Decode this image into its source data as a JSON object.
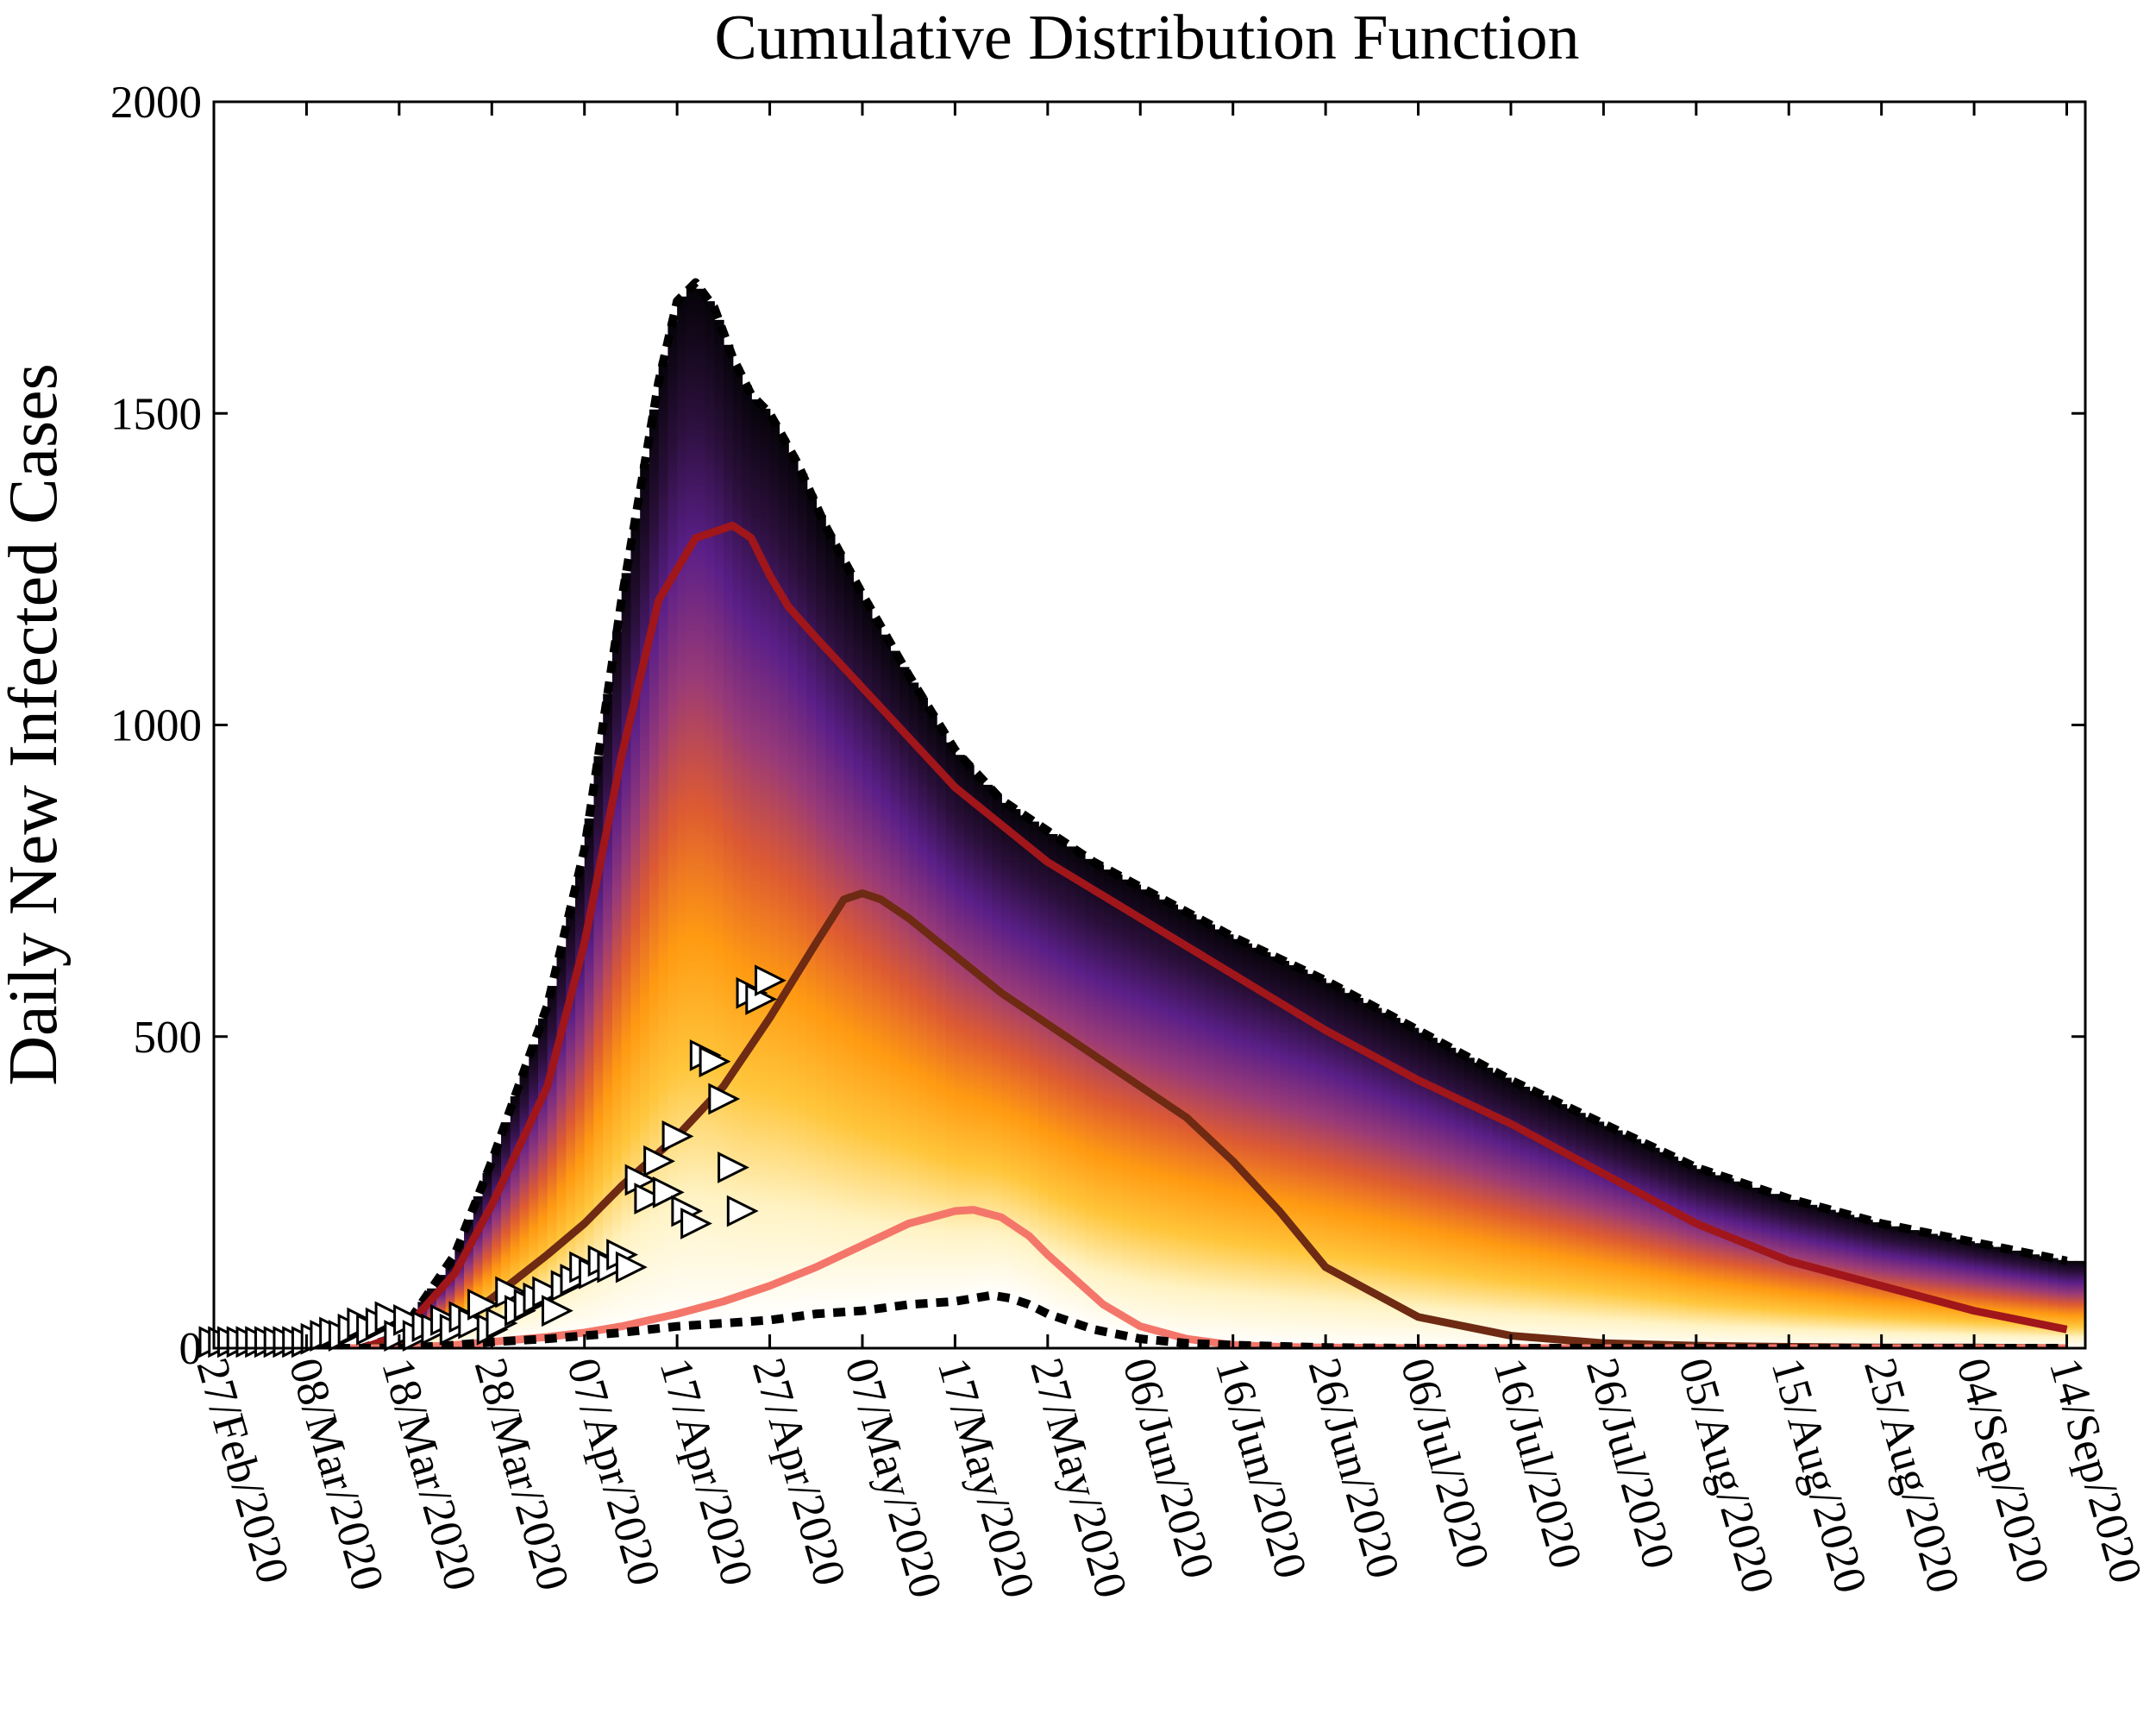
{
  "chart_data": {
    "type": "area",
    "title": "Cumulative Distribution Function",
    "xlabel": "",
    "ylabel": "Daily New Infected Cases",
    "ylim": [
      0,
      2000
    ],
    "xlim_days": [
      0,
      202
    ],
    "yticks": [
      0,
      500,
      1000,
      1500,
      2000
    ],
    "xtick_labels": [
      "27/Feb/2020",
      "08/Mar/2020",
      "18/Mar/2020",
      "28/Mar/2020",
      "07/Apr/2020",
      "17/Apr/2020",
      "27/Apr/2020",
      "07/May/2020",
      "17/May/2020",
      "27/May/2020",
      "06/Jun/2020",
      "16/Jun/2020",
      "26/Jun/2020",
      "06/Jul/2020",
      "16/Jul/2020",
      "26/Jul/2020",
      "05/Aug/2020",
      "15/Aug/2020",
      "25/Aug/2020",
      "04/Sep/2020",
      "14/Sep/2020"
    ],
    "xtick_days": [
      0,
      10,
      20,
      30,
      40,
      50,
      60,
      70,
      80,
      90,
      100,
      110,
      120,
      130,
      140,
      150,
      160,
      170,
      180,
      190,
      200
    ],
    "gradient_colors": [
      "#ffffff",
      "#fff3c4",
      "#ffc63c",
      "#ff9a12",
      "#dd5a32",
      "#993a78",
      "#5a1f88",
      "#2a0f3a",
      "#050308"
    ],
    "series": [
      {
        "name": "upper-bound",
        "style": "dashed",
        "color": "#000000",
        "x": [
          0,
          10,
          16,
          20,
          26,
          30,
          36,
          40,
          44,
          48,
          50,
          52,
          54,
          56,
          58,
          60,
          63,
          66,
          70,
          75,
          80,
          85,
          90,
          95,
          100,
          110,
          120,
          130,
          140,
          150,
          160,
          170,
          180,
          190,
          200
        ],
        "y": [
          0,
          0,
          0,
          20,
          150,
          300,
          550,
          800,
          1200,
          1550,
          1680,
          1710,
          1670,
          1590,
          1530,
          1500,
          1420,
          1320,
          1210,
          1080,
          960,
          880,
          830,
          780,
          740,
          660,
          590,
          510,
          430,
          360,
          290,
          240,
          200,
          170,
          140
        ]
      },
      {
        "name": "upper-quantile",
        "style": "solid",
        "color": "#a0161a",
        "x": [
          0,
          10,
          16,
          20,
          26,
          30,
          36,
          40,
          44,
          48,
          52,
          56,
          58,
          60,
          62,
          65,
          70,
          80,
          90,
          100,
          110,
          120,
          130,
          140,
          150,
          160,
          170,
          180,
          190,
          200
        ],
        "y": [
          0,
          0,
          0,
          20,
          120,
          230,
          420,
          650,
          950,
          1200,
          1300,
          1320,
          1300,
          1240,
          1190,
          1140,
          1060,
          900,
          780,
          690,
          600,
          510,
          430,
          360,
          280,
          200,
          140,
          100,
          60,
          30
        ]
      },
      {
        "name": "median",
        "style": "solid",
        "color": "#6e2a12",
        "x": [
          0,
          10,
          16,
          20,
          26,
          30,
          36,
          40,
          44,
          50,
          55,
          60,
          65,
          68,
          70,
          72,
          75,
          80,
          85,
          90,
          95,
          100,
          105,
          110,
          115,
          120,
          130,
          140,
          150,
          160,
          170,
          180,
          190,
          200
        ],
        "y": [
          0,
          0,
          0,
          5,
          40,
          80,
          150,
          200,
          260,
          340,
          420,
          530,
          650,
          720,
          730,
          720,
          690,
          630,
          570,
          520,
          470,
          420,
          370,
          300,
          220,
          130,
          50,
          20,
          8,
          4,
          2,
          1,
          1,
          0
        ]
      },
      {
        "name": "lower-quantile",
        "style": "solid",
        "color": "#f4766a",
        "x": [
          0,
          10,
          16,
          20,
          26,
          30,
          36,
          40,
          44,
          50,
          55,
          60,
          65,
          70,
          75,
          80,
          82,
          85,
          88,
          90,
          93,
          96,
          100,
          105,
          110,
          115,
          120,
          130,
          140,
          150,
          160,
          170,
          180,
          190,
          200
        ],
        "y": [
          0,
          0,
          0,
          0,
          5,
          10,
          18,
          25,
          35,
          55,
          75,
          100,
          130,
          165,
          200,
          220,
          222,
          210,
          180,
          150,
          110,
          70,
          35,
          15,
          5,
          2,
          1,
          0,
          0,
          0,
          0,
          0,
          0,
          0,
          0
        ]
      },
      {
        "name": "lower-bound",
        "style": "dashed",
        "color": "#000000",
        "x": [
          0,
          10,
          16,
          20,
          26,
          30,
          36,
          40,
          44,
          50,
          55,
          60,
          65,
          70,
          75,
          80,
          84,
          86,
          88,
          90,
          95,
          100,
          105,
          110,
          115,
          120,
          130,
          140,
          150,
          160,
          170,
          180,
          190,
          200
        ],
        "y": [
          0,
          0,
          0,
          0,
          5,
          10,
          15,
          20,
          25,
          35,
          40,
          45,
          55,
          60,
          70,
          75,
          85,
          80,
          70,
          55,
          30,
          15,
          8,
          5,
          3,
          1,
          0,
          0,
          0,
          0,
          0,
          0,
          0,
          0
        ]
      }
    ],
    "observed": {
      "name": "observed",
      "marker": "triangle-right",
      "x": [
        0,
        1,
        2,
        3,
        4,
        5,
        6,
        7,
        8,
        9,
        10,
        11,
        12,
        13,
        14,
        15,
        16,
        17,
        18,
        19,
        20,
        21,
        22,
        23,
        24,
        25,
        26,
        27,
        28,
        29,
        30,
        31,
        32,
        33,
        34,
        35,
        36,
        37,
        38,
        39,
        40,
        41,
        42,
        43,
        44,
        45,
        46,
        47,
        48,
        49,
        50,
        51,
        52,
        53,
        54,
        55,
        56,
        57,
        58,
        59,
        60
      ],
      "y": [
        10,
        10,
        10,
        10,
        10,
        10,
        10,
        10,
        10,
        10,
        10,
        15,
        20,
        25,
        20,
        30,
        40,
        30,
        40,
        50,
        20,
        45,
        20,
        35,
        30,
        45,
        30,
        50,
        40,
        70,
        30,
        40,
        90,
        60,
        70,
        80,
        90,
        60,
        100,
        110,
        130,
        120,
        140,
        130,
        150,
        130,
        270,
        240,
        300,
        250,
        340,
        220,
        200,
        470,
        460,
        400,
        290,
        220,
        570,
        560,
        590
      ]
    }
  }
}
